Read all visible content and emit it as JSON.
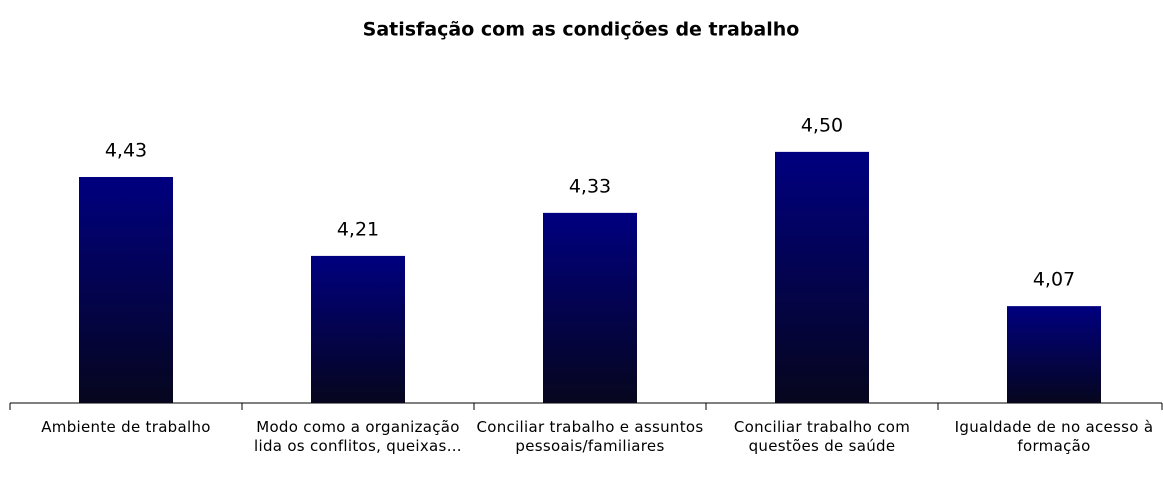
{
  "chart_data": {
    "type": "bar",
    "title": "Satisfação com as condições de trabalho",
    "categories": [
      "Ambiente de trabalho",
      "Modo como a organização lida os conflitos, queixas…",
      "Conciliar trabalho e assuntos pessoais/familiares",
      "Conciliar  trabalho com questões de saúde",
      "Igualdade de no acesso à formação"
    ],
    "values": [
      4.43,
      4.21,
      4.33,
      4.5,
      4.07
    ],
    "value_labels": [
      "4,43",
      "4,21",
      "4,33",
      "4,50",
      "4,07"
    ],
    "color": "#000080",
    "ylim": [
      3.8,
      4.6
    ]
  }
}
